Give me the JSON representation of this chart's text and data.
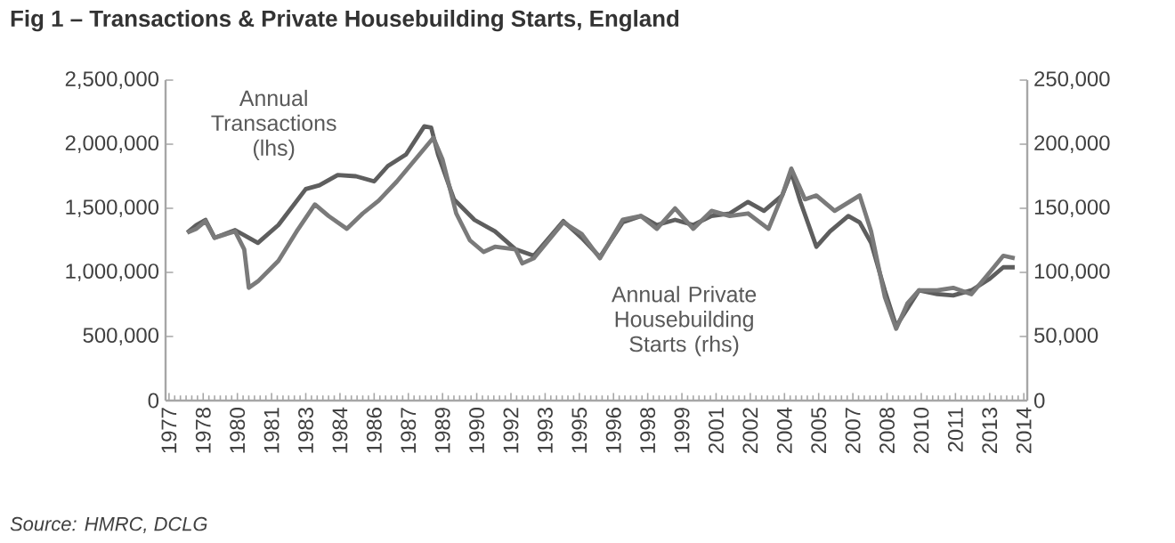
{
  "chart_data": {
    "type": "line",
    "title": "Fig 1 – Transactions & Private Housebuilding Starts, England",
    "annotations": [
      "Source: HMRC, DCLG"
    ],
    "xlim": [
      1976.85,
      2014.65
    ],
    "xticks": [
      {
        "value": 1977,
        "label": "1977"
      },
      {
        "value": 1978.5,
        "label": "1978"
      },
      {
        "value": 1980,
        "label": "1980"
      },
      {
        "value": 1981.5,
        "label": "1981"
      },
      {
        "value": 1983,
        "label": "1983"
      },
      {
        "value": 1984.5,
        "label": "1984"
      },
      {
        "value": 1986,
        "label": "1986"
      },
      {
        "value": 1987.5,
        "label": "1987"
      },
      {
        "value": 1989,
        "label": "1989"
      },
      {
        "value": 1990.5,
        "label": "1990"
      },
      {
        "value": 1992,
        "label": "1992"
      },
      {
        "value": 1993.5,
        "label": "1993"
      },
      {
        "value": 1995,
        "label": "1995"
      },
      {
        "value": 1996.5,
        "label": "1996"
      },
      {
        "value": 1998,
        "label": "1998"
      },
      {
        "value": 1999.5,
        "label": "1999"
      },
      {
        "value": 2001,
        "label": "2001"
      },
      {
        "value": 2002.5,
        "label": "2002"
      },
      {
        "value": 2004,
        "label": "2004"
      },
      {
        "value": 2005.5,
        "label": "2005"
      },
      {
        "value": 2007,
        "label": "2007"
      },
      {
        "value": 2008.5,
        "label": "2008"
      },
      {
        "value": 2010,
        "label": "2010"
      },
      {
        "value": 2011.5,
        "label": "2011"
      },
      {
        "value": 2013,
        "label": "2013"
      },
      {
        "value": 2014.5,
        "label": "2014"
      }
    ],
    "ylim": [
      0,
      2500000
    ],
    "yticks": [
      0,
      {
        "value": 500000,
        "label": "500,000"
      },
      {
        "value": 1000000,
        "label": "1,000,000"
      },
      {
        "value": 1500000,
        "label": "1,500,000"
      },
      {
        "value": 2000000,
        "label": "2,000,000"
      },
      {
        "value": 2500000,
        "label": "2,500,000"
      }
    ],
    "y2lim": [
      0,
      250000
    ],
    "y2ticks": [
      0,
      {
        "value": 50000,
        "label": "50,000"
      },
      {
        "value": 100000,
        "label": "100,000"
      },
      {
        "value": 150000,
        "label": "150,000"
      },
      {
        "value": 200000,
        "label": "200,000"
      },
      {
        "value": 250000,
        "label": "250,000"
      }
    ],
    "grid": false,
    "series": [
      {
        "name": "Annual Transactions (lhs)",
        "color": "#5e5e5e",
        "x": [
          1977.8,
          1978.2,
          1978.6,
          1979.0,
          1979.9,
          1980.5,
          1980.9,
          1981.8,
          1983.0,
          1983.6,
          1984.4,
          1985.2,
          1986.0,
          1986.6,
          1987.4,
          1988.2,
          1988.5,
          1988.8,
          1989.5,
          1990.4,
          1991.3,
          1992.2,
          1993.0,
          1994.3,
          1995.1,
          1995.9,
          1996.9,
          1997.7,
          1998.4,
          1999.2,
          2000.0,
          2000.8,
          2001.6,
          2002.4,
          2003.1,
          2003.9,
          2004.3,
          2004.7,
          2005.4,
          2006.0,
          2006.8,
          2007.3,
          2007.8,
          2008.4,
          2008.9,
          2009.4,
          2009.9,
          2010.7,
          2011.4,
          2012.2,
          2013.0,
          2013.6,
          2014.1
        ],
        "values": [
          1310000,
          1370000,
          1410000,
          1270000,
          1330000,
          1270000,
          1230000,
          1370000,
          1650000,
          1680000,
          1760000,
          1750000,
          1710000,
          1830000,
          1920000,
          2140000,
          2130000,
          1920000,
          1570000,
          1410000,
          1320000,
          1180000,
          1130000,
          1400000,
          1270000,
          1120000,
          1390000,
          1440000,
          1370000,
          1410000,
          1370000,
          1440000,
          1460000,
          1550000,
          1480000,
          1600000,
          1780000,
          1550000,
          1200000,
          1320000,
          1440000,
          1390000,
          1230000,
          860000,
          580000,
          720000,
          860000,
          830000,
          820000,
          860000,
          950000,
          1040000,
          1040000
        ]
      },
      {
        "name": "Annual Private Housebuilding Starts (rhs)",
        "color": "#7a7a7a",
        "axis": "y2",
        "x": [
          1977.8,
          1978.2,
          1978.6,
          1979.0,
          1979.9,
          1980.3,
          1980.5,
          1980.9,
          1981.8,
          1982.6,
          1983.4,
          1984.0,
          1984.8,
          1985.5,
          1986.2,
          1987.0,
          1987.8,
          1988.6,
          1989.0,
          1989.6,
          1990.2,
          1990.8,
          1991.3,
          1992.2,
          1992.5,
          1993.0,
          1994.3,
          1995.1,
          1995.9,
          1996.9,
          1997.7,
          1998.4,
          1999.2,
          2000.0,
          2000.8,
          2001.6,
          2002.4,
          2003.3,
          2003.9,
          2004.3,
          2004.9,
          2005.4,
          2006.2,
          2007.3,
          2007.8,
          2008.4,
          2008.9,
          2009.4,
          2009.9,
          2010.7,
          2011.4,
          2012.2,
          2013.0,
          2013.6,
          2014.1
        ],
        "values": [
          131000,
          134000,
          140000,
          127000,
          132000,
          118000,
          88000,
          93000,
          109000,
          132000,
          153000,
          144000,
          134000,
          146000,
          156000,
          171000,
          188000,
          205000,
          188000,
          146000,
          125000,
          116000,
          120000,
          118000,
          107000,
          111000,
          139000,
          130000,
          111000,
          141000,
          144000,
          134000,
          150000,
          134000,
          148000,
          144000,
          146000,
          134000,
          160000,
          181000,
          157000,
          160000,
          148000,
          160000,
          132000,
          81000,
          56000,
          76000,
          86000,
          86000,
          88000,
          83000,
          100000,
          113000,
          111000
        ]
      }
    ]
  }
}
